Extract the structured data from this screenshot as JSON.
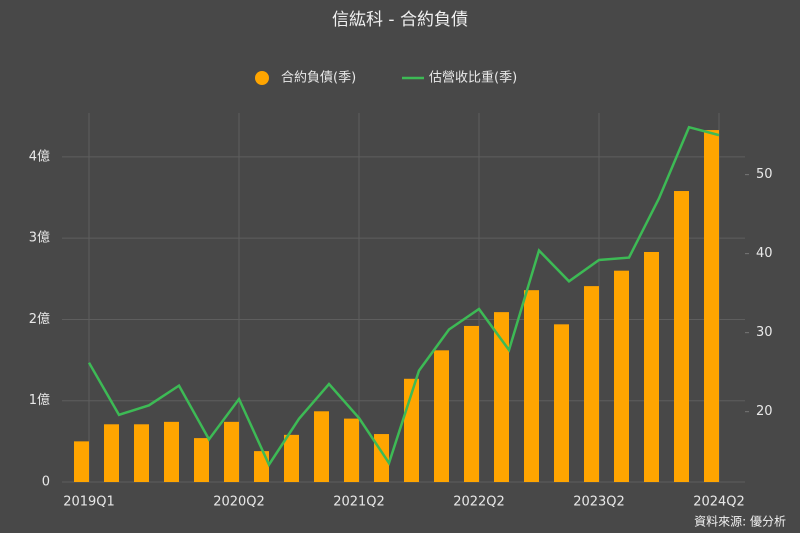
{
  "chart_data": {
    "type": "bar_line",
    "title": "信紘科 - 合約負債",
    "categories": [
      "2019Q1",
      null,
      null,
      null,
      null,
      "2020Q2",
      null,
      null,
      null,
      "2021Q2",
      null,
      null,
      null,
      "2022Q2",
      null,
      null,
      null,
      "2023Q2",
      null,
      null,
      null,
      "2024Q2"
    ],
    "series": [
      {
        "name": "合約負債(季)",
        "type": "bar",
        "color": "#ffa500",
        "values": [
          0.5,
          0.71,
          0.71,
          0.74,
          0.54,
          0.74,
          0.38,
          0.58,
          0.87,
          0.78,
          0.59,
          1.27,
          1.62,
          1.92,
          2.09,
          2.36,
          1.94,
          2.41,
          2.6,
          2.83,
          3.58,
          4.33
        ]
      },
      {
        "name": "估營收比重(季)",
        "type": "line",
        "axis": "y2",
        "color": "#3dba55",
        "values": [
          26.2,
          19.6,
          20.8,
          23.3,
          16.5,
          21.6,
          13.3,
          19.1,
          23.5,
          19.2,
          13.5,
          25.2,
          30.4,
          33.0,
          27.8,
          40.4,
          36.5,
          39.2,
          39.5,
          47.0,
          56.0,
          55.0
        ]
      }
    ],
    "ylim": [
      0,
      4.54
    ],
    "yticks": [
      0,
      {
        "value": 1,
        "label": "1億"
      },
      {
        "value": 2,
        "label": "2億"
      },
      {
        "value": 3,
        "label": "3億"
      },
      {
        "value": 4,
        "label": "4億"
      }
    ],
    "y2lim": [
      11.1,
      57.8
    ],
    "y2ticks": [
      20,
      30,
      40,
      50
    ],
    "grid": true,
    "legend": "top",
    "source": "資料來源: 優分析"
  }
}
